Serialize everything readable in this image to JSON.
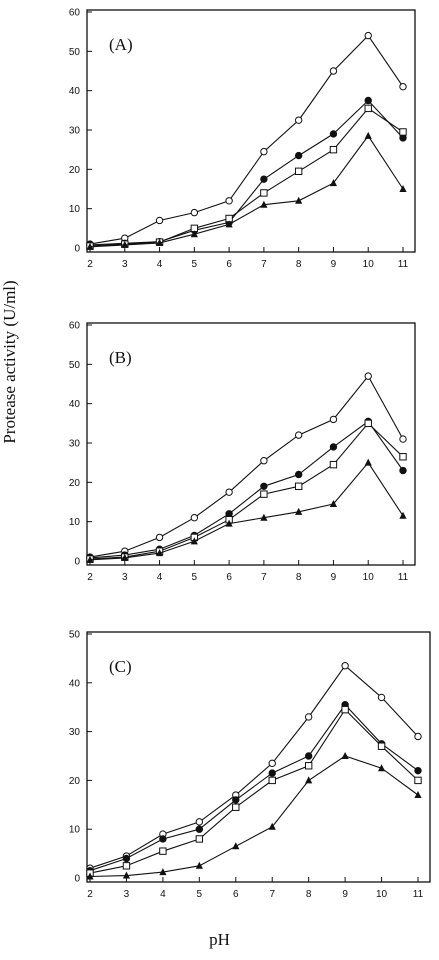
{
  "figure": {
    "ylabel": "Protease activity (U/ml)",
    "xlabel": "pH"
  },
  "chart_data": [
    {
      "type": "line",
      "panel_label": "(A)",
      "x": [
        2,
        3,
        4,
        5,
        6,
        7,
        8,
        9,
        10,
        11
      ],
      "xlim": [
        2,
        11
      ],
      "ylim": [
        0,
        60
      ],
      "yticks": [
        0,
        10,
        20,
        30,
        40,
        50,
        60
      ],
      "grid": false,
      "series": [
        {
          "marker": "open-circle",
          "values": [
            1,
            2.5,
            7,
            9,
            12,
            24.5,
            32.5,
            45,
            54,
            41
          ]
        },
        {
          "marker": "filled-circle",
          "values": [
            0.8,
            1.2,
            1.6,
            4.5,
            6.5,
            17.5,
            23.5,
            29,
            37.5,
            28
          ]
        },
        {
          "marker": "open-square",
          "values": [
            0.5,
            1,
            1.5,
            5,
            7.5,
            14,
            19.5,
            25,
            35.5,
            29.5
          ]
        },
        {
          "marker": "filled-triangle",
          "values": [
            0.3,
            0.8,
            1.3,
            3.5,
            6,
            11,
            12,
            16.5,
            28.5,
            15
          ]
        }
      ]
    },
    {
      "type": "line",
      "panel_label": "(B)",
      "x": [
        2,
        3,
        4,
        5,
        6,
        7,
        8,
        9,
        10,
        11
      ],
      "xlim": [
        2,
        11
      ],
      "ylim": [
        0,
        60
      ],
      "yticks": [
        0,
        10,
        20,
        30,
        40,
        50,
        60
      ],
      "grid": false,
      "series": [
        {
          "marker": "open-circle",
          "values": [
            1,
            2.5,
            6,
            11,
            17.5,
            25.5,
            32,
            36,
            47,
            31
          ]
        },
        {
          "marker": "filled-circle",
          "values": [
            0.8,
            1.5,
            3,
            6.5,
            12,
            19,
            22,
            29,
            35.5,
            23
          ]
        },
        {
          "marker": "open-square",
          "values": [
            0.5,
            1,
            2.5,
            6,
            10.5,
            17,
            19,
            24.5,
            35,
            26.5
          ]
        },
        {
          "marker": "filled-triangle",
          "values": [
            0.3,
            0.8,
            2,
            5,
            9.5,
            11,
            12.5,
            14.5,
            25,
            11.5
          ]
        }
      ]
    },
    {
      "type": "line",
      "panel_label": "(C)",
      "x": [
        2,
        3,
        4,
        5,
        6,
        7,
        8,
        9,
        10,
        11
      ],
      "xlim": [
        2,
        11
      ],
      "ylim": [
        0,
        50
      ],
      "yticks": [
        0,
        10,
        20,
        30,
        40,
        50
      ],
      "grid": false,
      "series": [
        {
          "marker": "open-circle",
          "values": [
            2,
            4.5,
            9,
            11.5,
            17,
            23.5,
            33,
            43.5,
            37,
            29
          ]
        },
        {
          "marker": "filled-circle",
          "values": [
            1.5,
            4,
            8,
            10,
            16,
            21.5,
            25,
            35.5,
            27.5,
            22
          ]
        },
        {
          "marker": "open-square",
          "values": [
            1,
            2.5,
            5.5,
            8,
            14.5,
            20,
            23,
            34.5,
            27,
            20
          ]
        },
        {
          "marker": "filled-triangle",
          "values": [
            0.3,
            0.5,
            1.2,
            2.5,
            6.5,
            10.5,
            20,
            25,
            22.5,
            17
          ]
        }
      ]
    }
  ]
}
